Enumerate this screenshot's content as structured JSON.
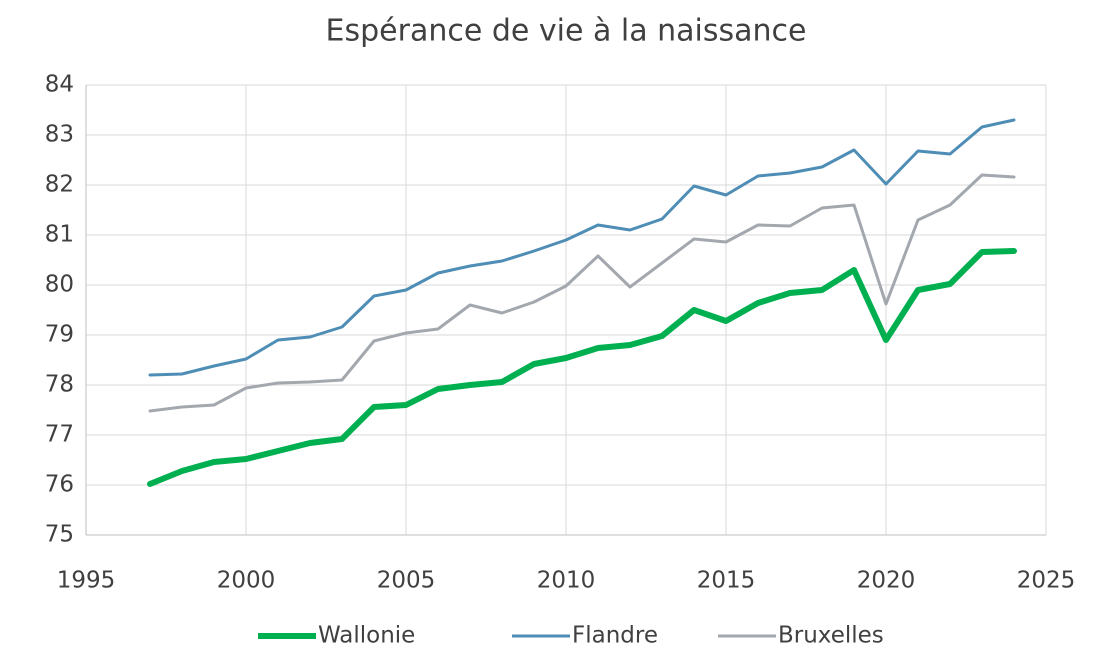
{
  "chart_data": {
    "type": "line",
    "title": "Espérance de vie à la naissance",
    "x": [
      1997,
      1998,
      1999,
      2000,
      2001,
      2002,
      2003,
      2004,
      2005,
      2006,
      2007,
      2008,
      2009,
      2010,
      2011,
      2012,
      2013,
      2014,
      2015,
      2016,
      2017,
      2018,
      2019,
      2020,
      2021,
      2022,
      2023,
      2024
    ],
    "series": [
      {
        "name": "Wallonie",
        "color": "#00b050",
        "values": [
          76.02,
          76.28,
          76.46,
          76.52,
          76.68,
          76.84,
          76.92,
          77.56,
          77.6,
          77.92,
          78.0,
          78.06,
          78.42,
          78.54,
          78.74,
          78.8,
          78.98,
          79.5,
          79.28,
          79.64,
          79.84,
          79.9,
          80.3,
          78.9,
          79.9,
          80.02,
          80.66,
          80.68
        ]
      },
      {
        "name": "Flandre",
        "color": "#4e8db5",
        "values": [
          78.2,
          78.22,
          78.38,
          78.52,
          78.9,
          78.96,
          79.16,
          79.78,
          79.9,
          80.24,
          80.38,
          80.48,
          80.68,
          80.9,
          81.2,
          81.1,
          81.32,
          81.98,
          81.8,
          82.18,
          82.24,
          82.36,
          82.7,
          82.02,
          82.68,
          82.62,
          83.16,
          83.3
        ]
      },
      {
        "name": "Bruxelles",
        "color": "#a3a8ae",
        "values": [
          77.48,
          77.56,
          77.6,
          77.94,
          78.04,
          78.06,
          78.1,
          78.88,
          79.04,
          79.12,
          79.6,
          79.44,
          79.66,
          79.98,
          80.58,
          79.96,
          80.44,
          80.92,
          80.86,
          81.2,
          81.18,
          81.54,
          81.6,
          79.62,
          81.3,
          81.6,
          82.2,
          82.16
        ]
      }
    ],
    "xlim": [
      1995,
      2025
    ],
    "xticks": [
      1995,
      2000,
      2005,
      2010,
      2015,
      2020,
      2025
    ],
    "ylim": [
      75,
      84
    ],
    "yticks": [
      75,
      76,
      77,
      78,
      79,
      80,
      81,
      82,
      83,
      84
    ],
    "grid": true,
    "legend": "bottom"
  }
}
